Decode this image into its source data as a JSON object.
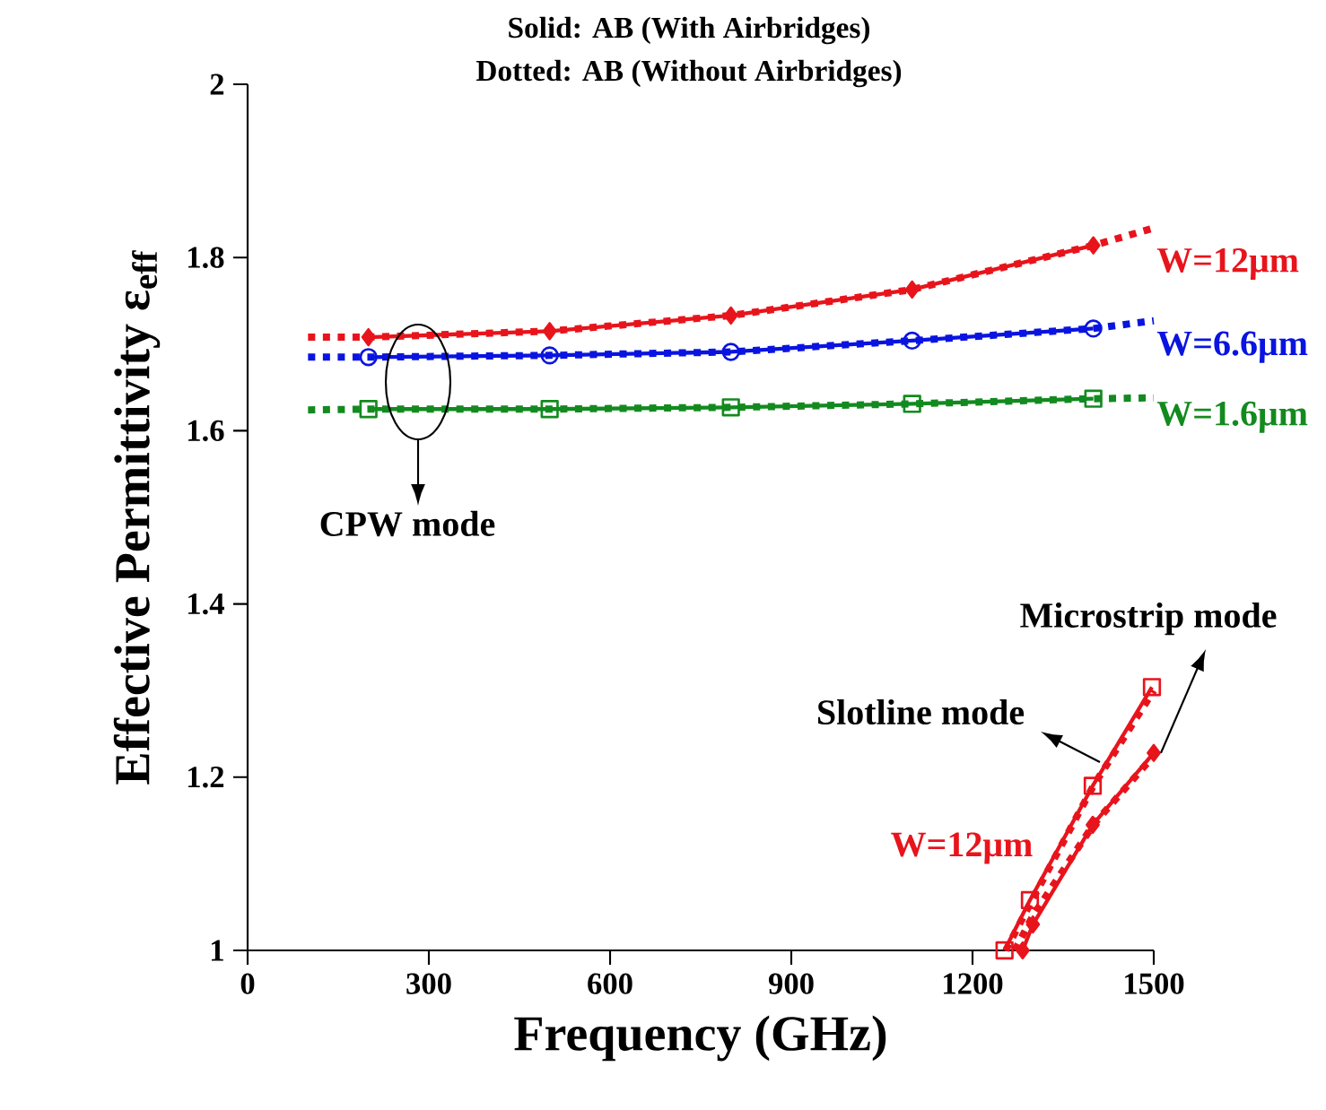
{
  "chart_data": {
    "type": "line",
    "title": "Solid: AB (With Airbridges)",
    "subtitle": "Dotted: AB (Without Airbridges)",
    "xlabel": "Frequency (GHz)",
    "ylabel": "Effective Permittivity ε$_{eff}$",
    "xlim": [
      0,
      1500
    ],
    "ylim": [
      1,
      2
    ],
    "xticks": [
      0,
      300,
      600,
      900,
      1200,
      1500
    ],
    "yticks": [
      1,
      1.2,
      1.4,
      1.6,
      1.8,
      2
    ],
    "series": [
      {
        "name": "W=12μm",
        "color": "#e8141c",
        "line_style": "solid",
        "marker": "diamond",
        "x": [
          200,
          500,
          800,
          1100,
          1400
        ],
        "values": [
          1.708,
          1.715,
          1.733,
          1.763,
          1.814
        ]
      },
      {
        "color": "#e8141c",
        "line_style": "dotted",
        "marker": "none",
        "x": [
          100,
          200,
          500,
          800,
          1100,
          1400,
          1500
        ],
        "values": [
          1.708,
          1.708,
          1.715,
          1.733,
          1.763,
          1.814,
          1.834
        ]
      },
      {
        "name": "W=6.6μm",
        "color": "#0a14e0",
        "line_style": "solid",
        "marker": "circle",
        "x": [
          200,
          500,
          800,
          1100,
          1400
        ],
        "values": [
          1.685,
          1.687,
          1.691,
          1.704,
          1.718
        ]
      },
      {
        "color": "#0a14e0",
        "line_style": "dotted",
        "marker": "none",
        "x": [
          100,
          200,
          500,
          800,
          1100,
          1400,
          1500
        ],
        "values": [
          1.685,
          1.685,
          1.687,
          1.691,
          1.704,
          1.718,
          1.727
        ]
      },
      {
        "name": "W=1.6μm",
        "color": "#138a1f",
        "line_style": "solid",
        "marker": "square",
        "x": [
          200,
          500,
          800,
          1100,
          1400
        ],
        "values": [
          1.625,
          1.625,
          1.627,
          1.631,
          1.637
        ]
      },
      {
        "color": "#138a1f",
        "line_style": "dotted",
        "marker": "none",
        "x": [
          100,
          200,
          500,
          800,
          1100,
          1400,
          1500
        ],
        "values": [
          1.624,
          1.625,
          1.625,
          1.627,
          1.631,
          1.637,
          1.638
        ]
      },
      {
        "color": "#e8141c",
        "line_style": "solid",
        "marker": "square",
        "x": [
          1253,
          1295,
          1399,
          1497
        ],
        "values": [
          1.0,
          1.058,
          1.19,
          1.304
        ]
      },
      {
        "color": "#e8141c",
        "line_style": "dotted",
        "marker": "none",
        "x": [
          1255,
          1300,
          1400,
          1500
        ],
        "values": [
          1.0,
          1.06,
          1.19,
          1.3
        ]
      },
      {
        "color": "#e8141c",
        "line_style": "solid",
        "marker": "diamond",
        "x": [
          1283,
          1300,
          1399,
          1500
        ],
        "values": [
          1.0,
          1.03,
          1.145,
          1.228
        ]
      },
      {
        "color": "#e8141c",
        "line_style": "dotted",
        "marker": "none",
        "x": [
          1270,
          1300,
          1400,
          1500
        ],
        "values": [
          1.0,
          1.04,
          1.145,
          1.225
        ]
      }
    ],
    "annotations": [
      "CPW mode",
      "Slotline mode",
      {
        "text": "Microstrip mode",
        "x": 1500,
        "y": 1.228
      },
      "W=12μm"
    ]
  }
}
